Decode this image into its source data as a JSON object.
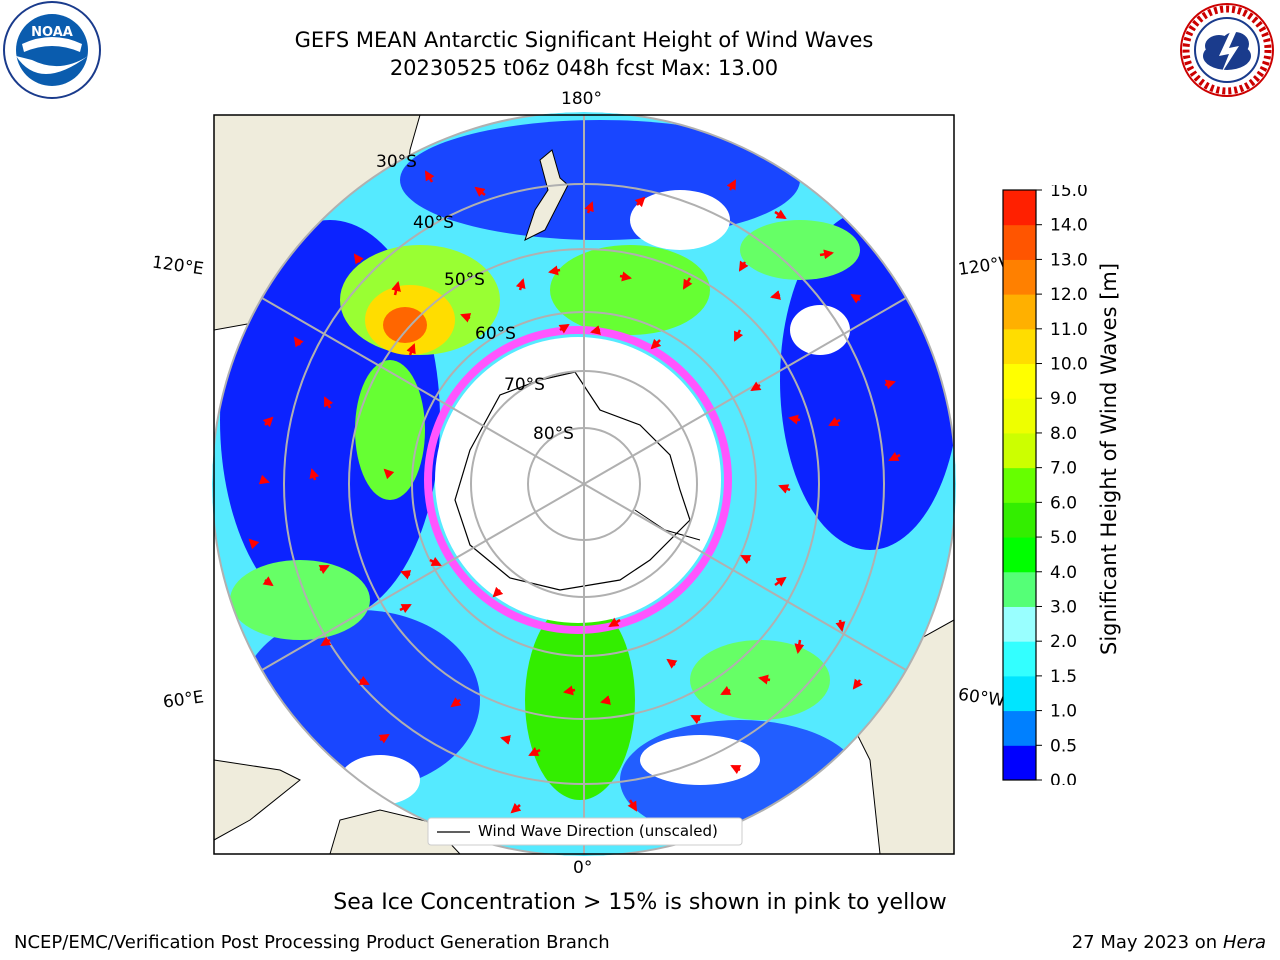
{
  "header": {
    "title_line1": "GEFS MEAN Antarctic Significant Height of Wind Waves",
    "title_line2": "20230525 t06z 048h fcst   Max: 13.00"
  },
  "logos": {
    "left": {
      "text": "NOAA",
      "ring_text": "NATIONAL OCEANIC AND ATMOSPHERIC ADMINISTRATION · U.S. DEPARTMENT OF COMMERCE"
    },
    "right": {
      "ring_text": "NATIONAL WEATHER SERVICE"
    }
  },
  "map": {
    "projection": "south polar stereographic",
    "longitude_labels": {
      "top": "180°",
      "bottom": "0°",
      "left_upper": "120°E",
      "right_upper": "120°W",
      "left_lower": "60°E",
      "right_lower": "60°W"
    },
    "latitude_labels": [
      "30°S",
      "40°S",
      "50°S",
      "60°S",
      "70°S",
      "80°S"
    ],
    "legend_label": "Wind Wave Direction (unscaled)",
    "colors": {
      "land": "#efecdc",
      "ocean_low": "#0000ff",
      "ocean_mid": "#00ffff",
      "wave_high": "#ff4500",
      "sea_ice": "#ff00ff",
      "arrows": "#ff0000",
      "grid": "#b0b0b0"
    }
  },
  "colorbar": {
    "title": "Significant Height of Wind Waves [m]",
    "ticks": [
      "0.0",
      "0.5",
      "1.0",
      "1.5",
      "2.0",
      "3.0",
      "4.0",
      "5.0",
      "6.0",
      "7.0",
      "8.0",
      "9.0",
      "10.0",
      "11.0",
      "12.0",
      "13.0",
      "14.0",
      "15.0"
    ],
    "colors": [
      "#0000ff",
      "#0080ff",
      "#00e5ff",
      "#33ffff",
      "#99ffff",
      "#55ff77",
      "#00ff00",
      "#33ee00",
      "#66ff00",
      "#ccff00",
      "#eeff00",
      "#ffff00",
      "#ffdd00",
      "#ffb000",
      "#ff8000",
      "#ff5500",
      "#ff2000",
      "#ff0000"
    ]
  },
  "notes": {
    "sea_ice": "Sea Ice Concentration > 15% is shown in pink to yellow"
  },
  "footer": {
    "left": "NCEP/EMC/Verification Post Processing Product Generation Branch",
    "right_date": "27 May 2023 on",
    "right_host": "Hera"
  }
}
